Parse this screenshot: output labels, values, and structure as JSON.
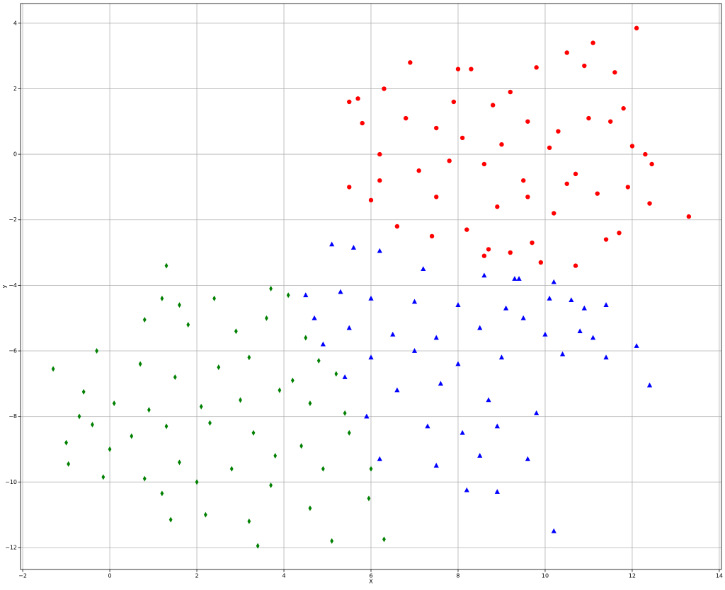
{
  "chart_data": {
    "type": "scatter",
    "x_label": "X",
    "y_label": "y",
    "grid": true,
    "xlim": [
      -2.05,
      14.05
    ],
    "ylim": [
      -12.67,
      4.6
    ],
    "xticks": [
      {
        "value": -2,
        "label": "−2"
      },
      0,
      2,
      4,
      6,
      8,
      10,
      12,
      14
    ],
    "yticks": [
      {
        "value": -12,
        "label": "−12"
      },
      {
        "value": -10,
        "label": "−10"
      },
      {
        "value": -8,
        "label": "−8"
      },
      {
        "value": -6,
        "label": "−6"
      },
      {
        "value": -4,
        "label": "−4"
      },
      {
        "value": -2,
        "label": "−2"
      },
      0,
      2,
      4
    ],
    "series": [
      {
        "color": "red",
        "marker": "circle",
        "x": [
          12.1,
          11.1,
          10.5,
          6.9,
          10.9,
          9.8,
          8,
          8.3,
          11.6,
          6.3,
          5.7,
          9.2,
          5.5,
          11.8,
          7.9,
          8.8,
          6.8,
          11.0,
          9.6,
          5.8,
          7.5,
          10.3,
          11.5,
          12.0,
          12.3,
          12.45,
          6.2,
          8.1,
          9.0,
          10.1,
          7.1,
          8.6,
          9.5,
          10.7,
          6.2,
          11.2,
          11.9,
          5.5,
          6.0,
          7.5,
          8.9,
          10.2,
          12.4,
          13.3,
          6.6,
          8.2,
          9.7,
          11.4,
          11.7,
          8.7,
          7.4,
          9.2,
          9.9,
          10.7,
          8.6,
          9.6,
          7.8,
          10.5
        ],
        "values": [
          3.85,
          3.4,
          3.1,
          2.8,
          2.7,
          2.65,
          2.6,
          2.6,
          2.5,
          2.0,
          1.7,
          1.9,
          1.6,
          1.4,
          1.6,
          1.5,
          1.1,
          1.1,
          1.0,
          0.95,
          0.8,
          0.7,
          1.0,
          0.25,
          0.0,
          -0.3,
          0.0,
          0.5,
          0.3,
          0.2,
          -0.5,
          -0.3,
          -0.8,
          -0.6,
          -0.8,
          -1.2,
          -1.0,
          -1.0,
          -1.4,
          -1.3,
          -1.6,
          -1.8,
          -1.5,
          -1.9,
          -2.2,
          -2.3,
          -2.7,
          -2.6,
          -2.4,
          -2.9,
          -2.5,
          -3.0,
          -3.3,
          -3.4,
          -3.1,
          -1.3,
          -0.2,
          -0.9
        ]
      },
      {
        "color": "blue",
        "marker": "triangle",
        "x": [
          5.1,
          5.6,
          6.2,
          7.2,
          8.6,
          9.4,
          10.2,
          9.3,
          4.5,
          5.3,
          6.0,
          7.0,
          8.0,
          9.1,
          10.1,
          10.6,
          11.4,
          10.9,
          4.7,
          5.5,
          6.5,
          7.5,
          8.5,
          9.5,
          10.0,
          10.8,
          11.1,
          12.1,
          4.9,
          6.0,
          7.0,
          8.0,
          9.0,
          10.4,
          11.4,
          12.4,
          5.4,
          6.6,
          7.6,
          8.7,
          9.8,
          5.9,
          7.3,
          8.1,
          8.9,
          6.2,
          7.5,
          8.5,
          9.6,
          8.2,
          8.9,
          10.2
        ],
        "values": [
          -2.75,
          -2.85,
          -2.95,
          -3.5,
          -3.7,
          -3.8,
          -3.9,
          -3.8,
          -4.3,
          -4.2,
          -4.4,
          -4.5,
          -4.6,
          -4.7,
          -4.4,
          -4.45,
          -4.6,
          -4.7,
          -5.0,
          -5.3,
          -5.5,
          -5.6,
          -5.3,
          -5.0,
          -5.5,
          -5.4,
          -5.6,
          -5.85,
          -5.8,
          -6.2,
          -6.0,
          -6.4,
          -6.2,
          -6.1,
          -6.2,
          -7.05,
          -6.8,
          -7.2,
          -7.0,
          -7.5,
          -7.9,
          -8.0,
          -8.3,
          -8.5,
          -8.3,
          -9.3,
          -9.5,
          -9.2,
          -9.3,
          -10.25,
          -10.3,
          -11.5
        ]
      },
      {
        "color": "green",
        "marker": "diamond",
        "x": [
          1.3,
          1.2,
          1.6,
          2.4,
          3.7,
          4.1,
          -0.3,
          -1.3,
          0.8,
          1.8,
          2.9,
          3.6,
          4.5,
          0.7,
          1.5,
          2.5,
          3.2,
          4.2,
          4.8,
          5.2,
          -0.6,
          0.1,
          0.9,
          2.1,
          3.0,
          3.9,
          4.6,
          5.4,
          -0.7,
          -0.4,
          0.5,
          1.3,
          2.3,
          3.3,
          4.4,
          5.5,
          -1.0,
          0.0,
          1.6,
          2.8,
          3.8,
          4.9,
          -0.95,
          -0.15,
          0.8,
          2.0,
          3.7,
          1.2,
          2.2,
          3.2,
          4.6,
          5.95,
          1.4,
          3.4,
          5.1,
          6.3,
          6.0
        ],
        "values": [
          -3.4,
          -4.4,
          -4.6,
          -4.4,
          -4.1,
          -4.3,
          -6.0,
          -6.55,
          -5.05,
          -5.2,
          -5.4,
          -5.0,
          -5.6,
          -6.4,
          -6.8,
          -6.5,
          -6.2,
          -6.9,
          -6.3,
          -6.7,
          -7.25,
          -7.6,
          -7.8,
          -7.7,
          -7.5,
          -7.2,
          -7.6,
          -7.9,
          -8.0,
          -8.25,
          -8.6,
          -8.3,
          -8.2,
          -8.5,
          -8.9,
          -8.5,
          -8.8,
          -9.0,
          -9.4,
          -9.6,
          -9.2,
          -9.6,
          -9.45,
          -9.85,
          -9.9,
          -10.0,
          -10.1,
          -10.35,
          -11.0,
          -11.2,
          -10.8,
          -10.5,
          -11.15,
          -11.95,
          -11.8,
          -11.75,
          -9.6
        ]
      }
    ]
  }
}
